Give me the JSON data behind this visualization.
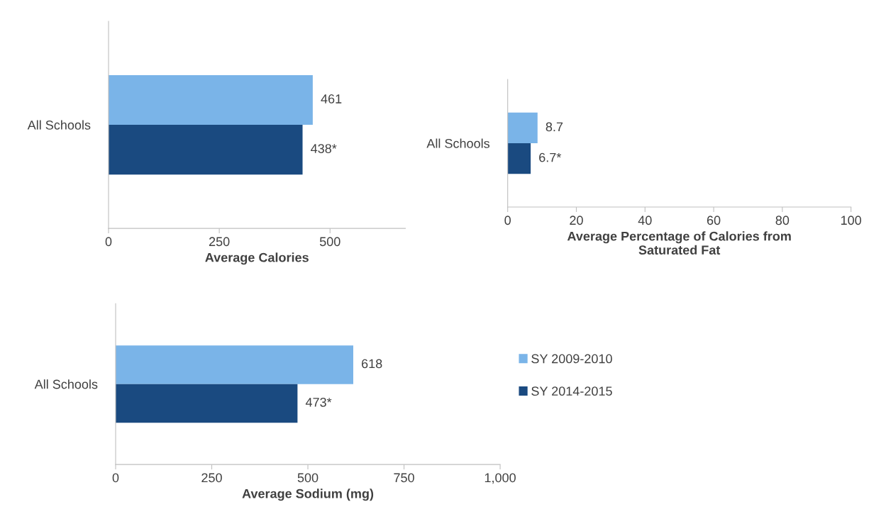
{
  "chart_data": [
    {
      "type": "bar",
      "orientation": "horizontal",
      "xlabel": "Average Calories",
      "categories": [
        "All Schools"
      ],
      "xlim": [
        0,
        670
      ],
      "xticks": [
        0,
        250,
        500
      ],
      "grid": false,
      "legend": false,
      "series": [
        {
          "color": "#7ab4e8",
          "values": [
            461
          ],
          "value_labels": [
            "461"
          ]
        },
        {
          "color": "#1a4a80",
          "values": [
            438
          ],
          "value_labels": [
            "438*"
          ]
        }
      ]
    },
    {
      "type": "bar",
      "orientation": "horizontal",
      "xlabel": "Average Percentage of Calories from\nSaturated Fat",
      "categories": [
        "All Schools"
      ],
      "xlim": [
        0,
        100
      ],
      "xticks": [
        0,
        20,
        40,
        60,
        80,
        100
      ],
      "grid": false,
      "legend": false,
      "series": [
        {
          "color": "#7ab4e8",
          "values": [
            8.7
          ],
          "value_labels": [
            "8.7"
          ]
        },
        {
          "color": "#1a4a80",
          "values": [
            6.7
          ],
          "value_labels": [
            "6.7*"
          ]
        }
      ]
    },
    {
      "type": "bar",
      "orientation": "horizontal",
      "xlabel": "Average Sodium (mg)",
      "categories": [
        "All Schools"
      ],
      "xlim": [
        0,
        1000
      ],
      "xticks": [
        0,
        250,
        500,
        750,
        {
          "value": 1000,
          "label": "1,000"
        }
      ],
      "grid": false,
      "legend": "right",
      "series": [
        {
          "name": "SY 2009-2010",
          "color": "#7ab4e8",
          "values": [
            618
          ],
          "value_labels": [
            "618"
          ]
        },
        {
          "name": "SY 2014-2015",
          "color": "#1a4a80",
          "values": [
            473
          ],
          "value_labels": [
            "473*"
          ]
        }
      ]
    }
  ]
}
